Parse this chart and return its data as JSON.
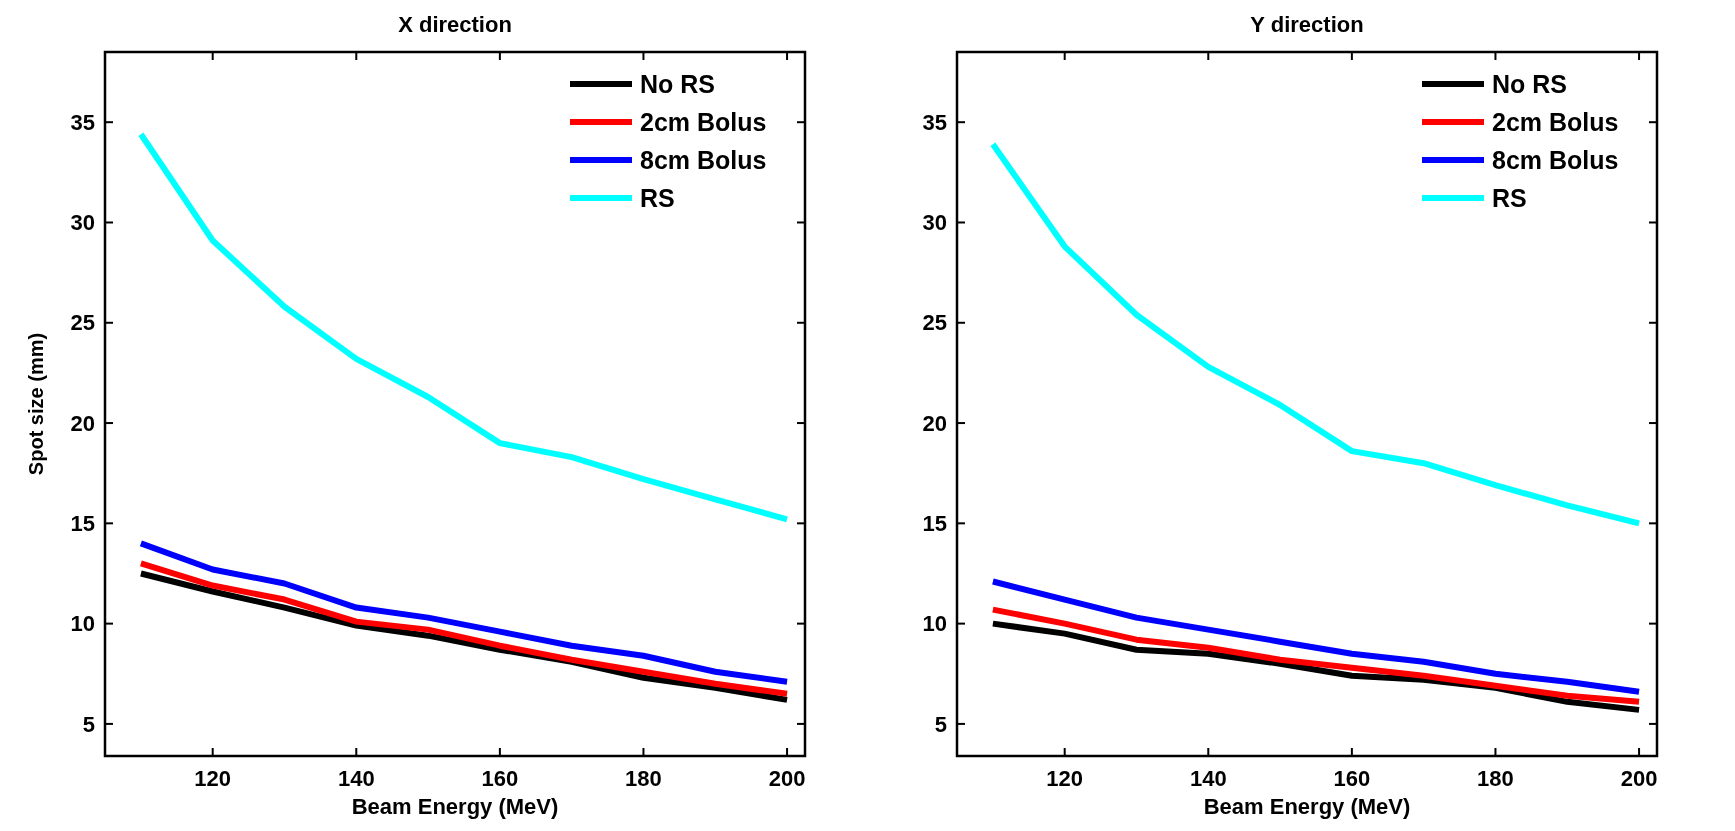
{
  "chart_data": [
    {
      "type": "line",
      "title": "X direction",
      "xlabel": "Beam Energy (MeV)",
      "ylabel": "Spot size (mm)",
      "x": [
        110,
        120,
        130,
        140,
        150,
        160,
        170,
        180,
        190,
        200
      ],
      "xlim": [
        105,
        202.5
      ],
      "xticks": [
        120,
        140,
        160,
        180,
        200
      ],
      "ylim": [
        3.4,
        38.5
      ],
      "yticks": [
        5,
        10,
        15,
        20,
        25,
        30,
        35
      ],
      "legend": "top right",
      "series": [
        {
          "name": "No RS",
          "color": "#000000",
          "values": [
            12.5,
            11.6,
            10.8,
            9.9,
            9.4,
            8.7,
            8.1,
            7.3,
            6.8,
            6.2
          ]
        },
        {
          "name": "2cm Bolus",
          "color": "#ff0000",
          "values": [
            13.0,
            11.9,
            11.2,
            10.1,
            9.7,
            8.9,
            8.2,
            7.6,
            7.0,
            6.5
          ]
        },
        {
          "name": "8cm Bolus",
          "color": "#0000ff",
          "values": [
            14.0,
            12.7,
            12.0,
            10.8,
            10.3,
            9.6,
            8.9,
            8.4,
            7.6,
            7.1
          ]
        },
        {
          "name": "RS",
          "color": "#00ffff",
          "values": [
            34.4,
            29.1,
            25.8,
            23.2,
            21.3,
            19.0,
            18.3,
            17.2,
            16.2,
            15.2
          ]
        }
      ]
    },
    {
      "type": "line",
      "title": "Y direction",
      "xlabel": "Beam Energy (MeV)",
      "x": [
        110,
        120,
        130,
        140,
        150,
        160,
        170,
        180,
        190,
        200
      ],
      "xlim": [
        105,
        202.5
      ],
      "xticks": [
        120,
        140,
        160,
        180,
        200
      ],
      "ylim": [
        3.4,
        38.5
      ],
      "yticks": [
        5,
        10,
        15,
        20,
        25,
        30,
        35
      ],
      "legend": "top right",
      "series": [
        {
          "name": "No RS",
          "color": "#000000",
          "values": [
            10.0,
            9.5,
            8.7,
            8.5,
            8.0,
            7.4,
            7.2,
            6.8,
            6.1,
            5.7
          ]
        },
        {
          "name": "2cm Bolus",
          "color": "#ff0000",
          "values": [
            10.7,
            10.0,
            9.2,
            8.8,
            8.2,
            7.8,
            7.4,
            6.9,
            6.4,
            6.1
          ]
        },
        {
          "name": "8cm Bolus",
          "color": "#0000ff",
          "values": [
            12.1,
            11.2,
            10.3,
            9.7,
            9.1,
            8.5,
            8.1,
            7.5,
            7.1,
            6.6
          ]
        },
        {
          "name": "RS",
          "color": "#00ffff",
          "values": [
            33.9,
            28.8,
            25.4,
            22.8,
            20.9,
            18.6,
            18.0,
            16.9,
            15.9,
            15.0
          ]
        }
      ]
    }
  ]
}
